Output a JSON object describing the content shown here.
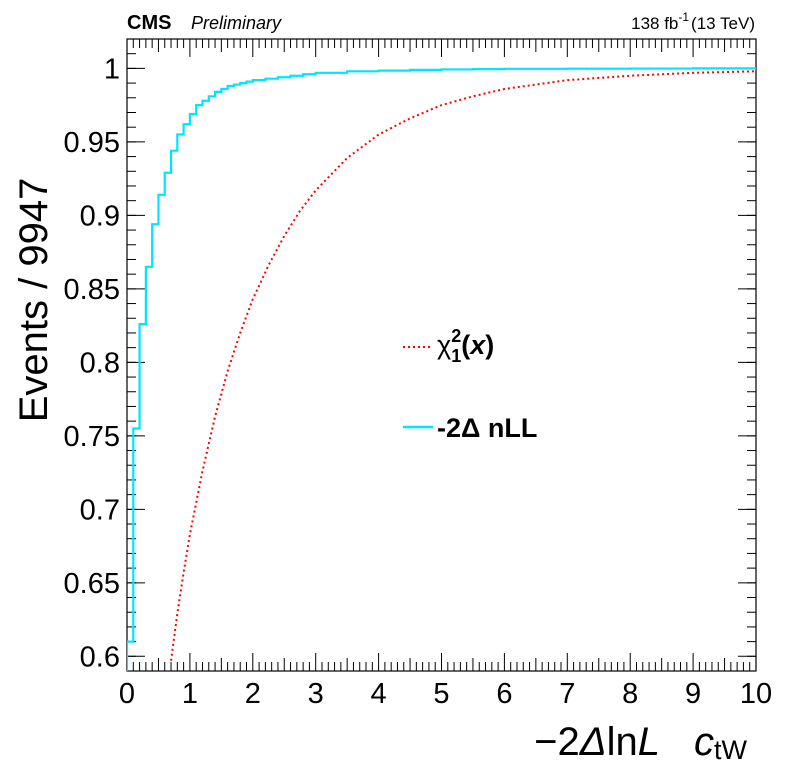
{
  "header": {
    "experiment": "CMS",
    "status": "Preliminary",
    "lumi_value": "138 fb",
    "lumi_exp": "-1",
    "lumi_energy": "(13 TeV)"
  },
  "legend": {
    "chi2_symbol": "χ",
    "chi2_sup": "2",
    "chi2_sub": "1",
    "chi2_open": "(",
    "chi2_var": "x",
    "chi2_close": ")",
    "nll_label": "-2Δ nLL"
  },
  "chart_data": {
    "type": "line",
    "title": "",
    "xlabel": "−2ΔlnL",
    "xlabel_parts": {
      "prefix": "−2",
      "delta": "Δ",
      "ln": "ln",
      "L": "L"
    },
    "xlabel_extra": {
      "c": "c",
      "sub": "tW"
    },
    "ylabel": "Events / 9947",
    "xlim": [
      0,
      10
    ],
    "ylim": [
      0.59,
      1.02
    ],
    "x_ticks": [
      0,
      1,
      2,
      3,
      4,
      5,
      6,
      7,
      8,
      9,
      10
    ],
    "x_tick_labels": [
      "0",
      "1",
      "2",
      "3",
      "4",
      "5",
      "6",
      "7",
      "8",
      "9",
      "10"
    ],
    "y_ticks": [
      0.6,
      0.65,
      0.7,
      0.75,
      0.8,
      0.85,
      0.9,
      0.95,
      1
    ],
    "y_tick_labels": [
      "0.6",
      "0.65",
      "0.7",
      "0.75",
      "0.8",
      "0.85",
      "0.9",
      "0.95",
      "1"
    ],
    "grid": false,
    "legend_position": "center-right",
    "series": [
      {
        "name": "χ²₁(x)",
        "style": "dotted",
        "color": "#ff0000",
        "x": [
          0.7,
          0.8,
          0.9,
          1.0,
          1.2,
          1.4,
          1.6,
          1.8,
          2.0,
          2.25,
          2.5,
          2.75,
          3.0,
          3.5,
          4.0,
          4.5,
          5.0,
          5.5,
          6.0,
          7.0,
          8.0,
          9.0,
          10.0
        ],
        "values": [
          0.597,
          0.629,
          0.657,
          0.683,
          0.726,
          0.763,
          0.794,
          0.82,
          0.843,
          0.866,
          0.886,
          0.903,
          0.917,
          0.939,
          0.955,
          0.966,
          0.975,
          0.981,
          0.986,
          0.992,
          0.995,
          0.997,
          0.998
        ]
      },
      {
        "name": "-2Δ nLL",
        "style": "step",
        "color": "#00e5ff",
        "x": [
          0.0,
          0.1,
          0.2,
          0.3,
          0.4,
          0.5,
          0.6,
          0.7,
          0.8,
          0.9,
          1.0,
          1.1,
          1.2,
          1.3,
          1.4,
          1.5,
          1.6,
          1.7,
          1.8,
          1.9,
          2.0,
          2.2,
          2.4,
          2.6,
          2.8,
          3.0,
          3.5,
          4.0,
          4.5,
          5.0,
          5.5,
          6.0,
          7.0,
          8.0,
          9.0,
          10.0
        ],
        "values": [
          0.61,
          0.755,
          0.826,
          0.865,
          0.894,
          0.914,
          0.929,
          0.944,
          0.955,
          0.962,
          0.969,
          0.975,
          0.978,
          0.981,
          0.984,
          0.986,
          0.988,
          0.989,
          0.99,
          0.991,
          0.992,
          0.993,
          0.994,
          0.995,
          0.996,
          0.997,
          0.998,
          0.9985,
          0.999,
          0.9993,
          0.9995,
          0.9997,
          0.9998,
          0.9999,
          1.0,
          1.0
        ]
      }
    ]
  }
}
